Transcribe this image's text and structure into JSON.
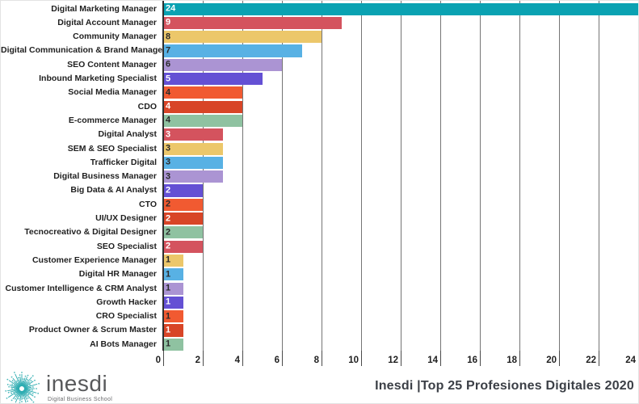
{
  "chart_data": {
    "type": "bar",
    "orientation": "horizontal",
    "title": "",
    "categories": [
      "Digital Marketing Manager",
      "Digital Account Manager",
      "Community Manager",
      "Digital Communication & Brand Manager",
      "SEO Content Manager",
      "Inbound Marketing Specialist",
      "Social Media Manager",
      "CDO",
      "E-commerce Manager",
      "Digital Analyst",
      "SEM & SEO Specialist",
      "Trafficker Digital",
      "Digital Business Manager",
      "Big Data & AI Analyst",
      "CTO",
      "UI/UX Designer",
      "Tecnocreativo & Digital Designer",
      "SEO Specialist",
      "Customer Experience Manager",
      "Digital HR Manager",
      "Customer Intelligence & CRM Analyst",
      "Growth Hacker",
      "CRO Specialist",
      "Product Owner & Scrum Master",
      "AI Bots Manager"
    ],
    "values": [
      24,
      9,
      8,
      7,
      6,
      5,
      4,
      4,
      4,
      3,
      3,
      3,
      3,
      2,
      2,
      2,
      2,
      2,
      1,
      1,
      1,
      1,
      1,
      1,
      1
    ],
    "bar_colors": [
      "#0aa2b2",
      "#d4535e",
      "#ecc76a",
      "#58b1e4",
      "#ab94d3",
      "#6450d4",
      "#f15a31",
      "#d84527",
      "#8fc2a1",
      "#d4535e",
      "#ecc76a",
      "#58b1e4",
      "#ab94d3",
      "#6450d4",
      "#f15a31",
      "#d84527",
      "#8fc2a1",
      "#d4535e",
      "#ecc76a",
      "#58b1e4",
      "#ab94d3",
      "#6450d4",
      "#f15a31",
      "#d84527",
      "#8fc2a1"
    ],
    "value_label_colors": [
      "#ffffff",
      "#ffffff",
      "#2b2b2b",
      "#2b2b2b",
      "#2b2b2b",
      "#ffffff",
      "#2b2b2b",
      "#ffffff",
      "#2b2b2b",
      "#ffffff",
      "#2b2b2b",
      "#2b2b2b",
      "#2b2b2b",
      "#ffffff",
      "#2b2b2b",
      "#ffffff",
      "#2b2b2b",
      "#ffffff",
      "#2b2b2b",
      "#2b2b2b",
      "#2b2b2b",
      "#ffffff",
      "#2b2b2b",
      "#ffffff",
      "#2b2b2b"
    ],
    "xlim": [
      0,
      24
    ],
    "x_ticks": [
      0,
      2,
      4,
      6,
      8,
      10,
      12,
      14,
      16,
      18,
      20,
      22,
      24
    ],
    "grid": true,
    "value_labels_shown": true,
    "xlabel": "",
    "ylabel": ""
  },
  "footer": {
    "credit": "Inesdi |Top 25 Profesiones Digitales 2020"
  },
  "logo": {
    "brand": "inesdi",
    "tagline": "Digital Business School"
  },
  "colors": {
    "teal": "#0aa2b2",
    "red": "#d4535e",
    "yellow": "#ecc76a",
    "blue": "#58b1e4",
    "lavender": "#ab94d3",
    "indigo": "#6450d4",
    "orange": "#f15a31",
    "rust": "#d84527",
    "green": "#8fc2a1",
    "gridline": "#757575",
    "axis": "#2f2f2f",
    "logo_teal": "#2aabb0"
  }
}
